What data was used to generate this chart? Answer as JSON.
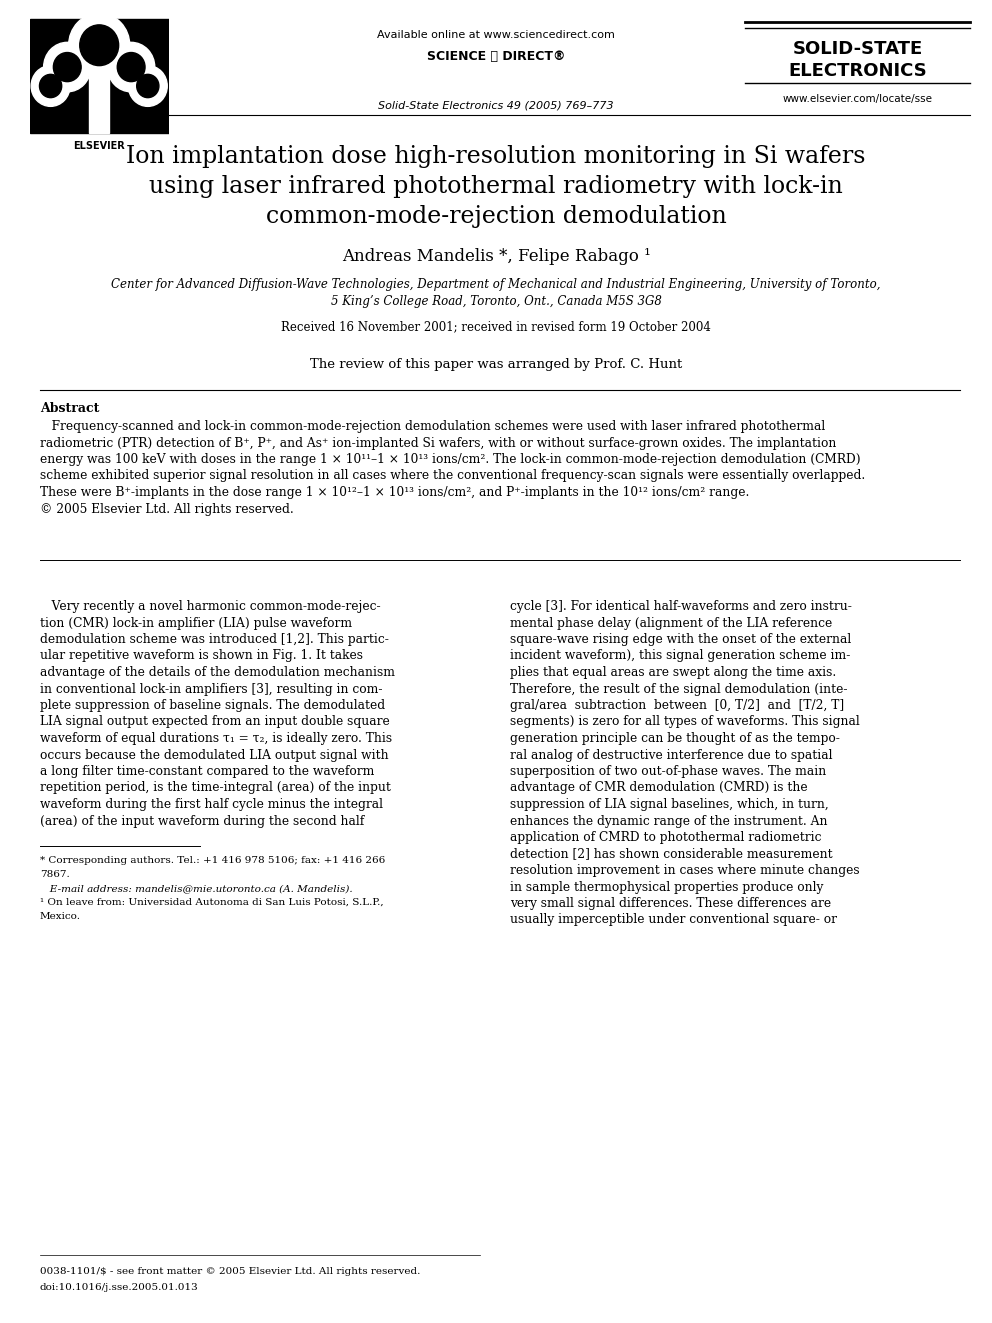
{
  "page_width": 9.92,
  "page_height": 13.23,
  "background_color": "#ffffff",
  "header": {
    "available_online": "Available online at www.sciencedirect.com",
    "journal_info": "Solid-State Electronics 49 (2005) 769–773",
    "journal_name_line1": "SOLID-STATE",
    "journal_name_line2": "ELECTRONICS",
    "journal_url": "www.elsevier.com/locate/sse"
  },
  "title_line1": "Ion implantation dose high-resolution monitoring in Si wafers",
  "title_line2": "using laser infrared photothermal radiometry with lock-in",
  "title_line3": "common-mode-rejection demodulation",
  "authors": "Andreas Mandelis *, Felipe Rabago ¹",
  "affiliation_line1": "Center for Advanced Diffusion-Wave Technologies, Department of Mechanical and Industrial Engineering, University of Toronto,",
  "affiliation_line2": "5 King’s College Road, Toronto, Ont., Canada M5S 3G8",
  "received": "Received 16 November 2001; received in revised form 19 October 2004",
  "editor_note": "The review of this paper was arranged by Prof. C. Hunt",
  "abstract_title": "Abstract",
  "abstract_lines": [
    "   Frequency-scanned and lock-in common-mode-rejection demodulation schemes were used with laser infrared photothermal",
    "radiometric (PTR) detection of B⁺, P⁺, and As⁺ ion-implanted Si wafers, with or without surface-grown oxides. The implantation",
    "energy was 100 keV with doses in the range 1 × 10¹¹–1 × 10¹³ ions/cm². The lock-in common-mode-rejection demodulation (CMRD)",
    "scheme exhibited superior signal resolution in all cases where the conventional frequency-scan signals were essentially overlapped.",
    "These were B⁺-implants in the dose range 1 × 10¹²–1 × 10¹³ ions/cm², and P⁺-implants in the 10¹² ions/cm² range.",
    "© 2005 Elsevier Ltd. All rights reserved."
  ],
  "body_left_lines": [
    "   Very recently a novel harmonic common-mode-rejec-",
    "tion (CMR) lock-in amplifier (LIA) pulse waveform",
    "demodulation scheme was introduced [1,2]. This partic-",
    "ular repetitive waveform is shown in Fig. 1. It takes",
    "advantage of the details of the demodulation mechanism",
    "in conventional lock-in amplifiers [3], resulting in com-",
    "plete suppression of baseline signals. The demodulated",
    "LIA signal output expected from an input double square",
    "waveform of equal durations τ₁ = τ₂, is ideally zero. This",
    "occurs because the demodulated LIA output signal with",
    "a long filter time-constant compared to the waveform",
    "repetition period, is the time-integral (area) of the input",
    "waveform during the first half cycle minus the integral",
    "(area) of the input waveform during the second half"
  ],
  "body_right_lines": [
    "cycle [3]. For identical half-waveforms and zero instru-",
    "mental phase delay (alignment of the LIA reference",
    "square-wave rising edge with the onset of the external",
    "incident waveform), this signal generation scheme im-",
    "plies that equal areas are swept along the time axis.",
    "Therefore, the result of the signal demodulation (inte-",
    "gral/area  subtraction  between  [0, T/2]  and  [T/2, T]",
    "segments) is zero for all types of waveforms. This signal",
    "generation principle can be thought of as the tempo-",
    "ral analog of destructive interference due to spatial",
    "superposition of two out-of-phase waves. The main",
    "advantage of CMR demodulation (CMRD) is the",
    "suppression of LIA signal baselines, which, in turn,",
    "enhances the dynamic range of the instrument. An",
    "application of CMRD to photothermal radiometric",
    "detection [2] has shown considerable measurement",
    "resolution improvement in cases where minute changes",
    "in sample thermophysical properties produce only",
    "very small signal differences. These differences are",
    "usually imperceptible under conventional square- or"
  ],
  "footnote_star": "* Corresponding authors. Tel.: +1 416 978 5106; fax: +1 416 266",
  "footnote_star2": "7867.",
  "footnote_email": "   E-mail address: mandelis@mie.utoronto.ca (A. Mandelis).",
  "footnote_1": "¹ On leave from: Universidad Autonoma di San Luis Potosi, S.L.P.,",
  "footnote_1b": "Mexico.",
  "footer_issn": "0038-1101/$ - see front matter © 2005 Elsevier Ltd. All rights reserved.",
  "footer_doi": "doi:10.1016/j.sse.2005.01.013"
}
